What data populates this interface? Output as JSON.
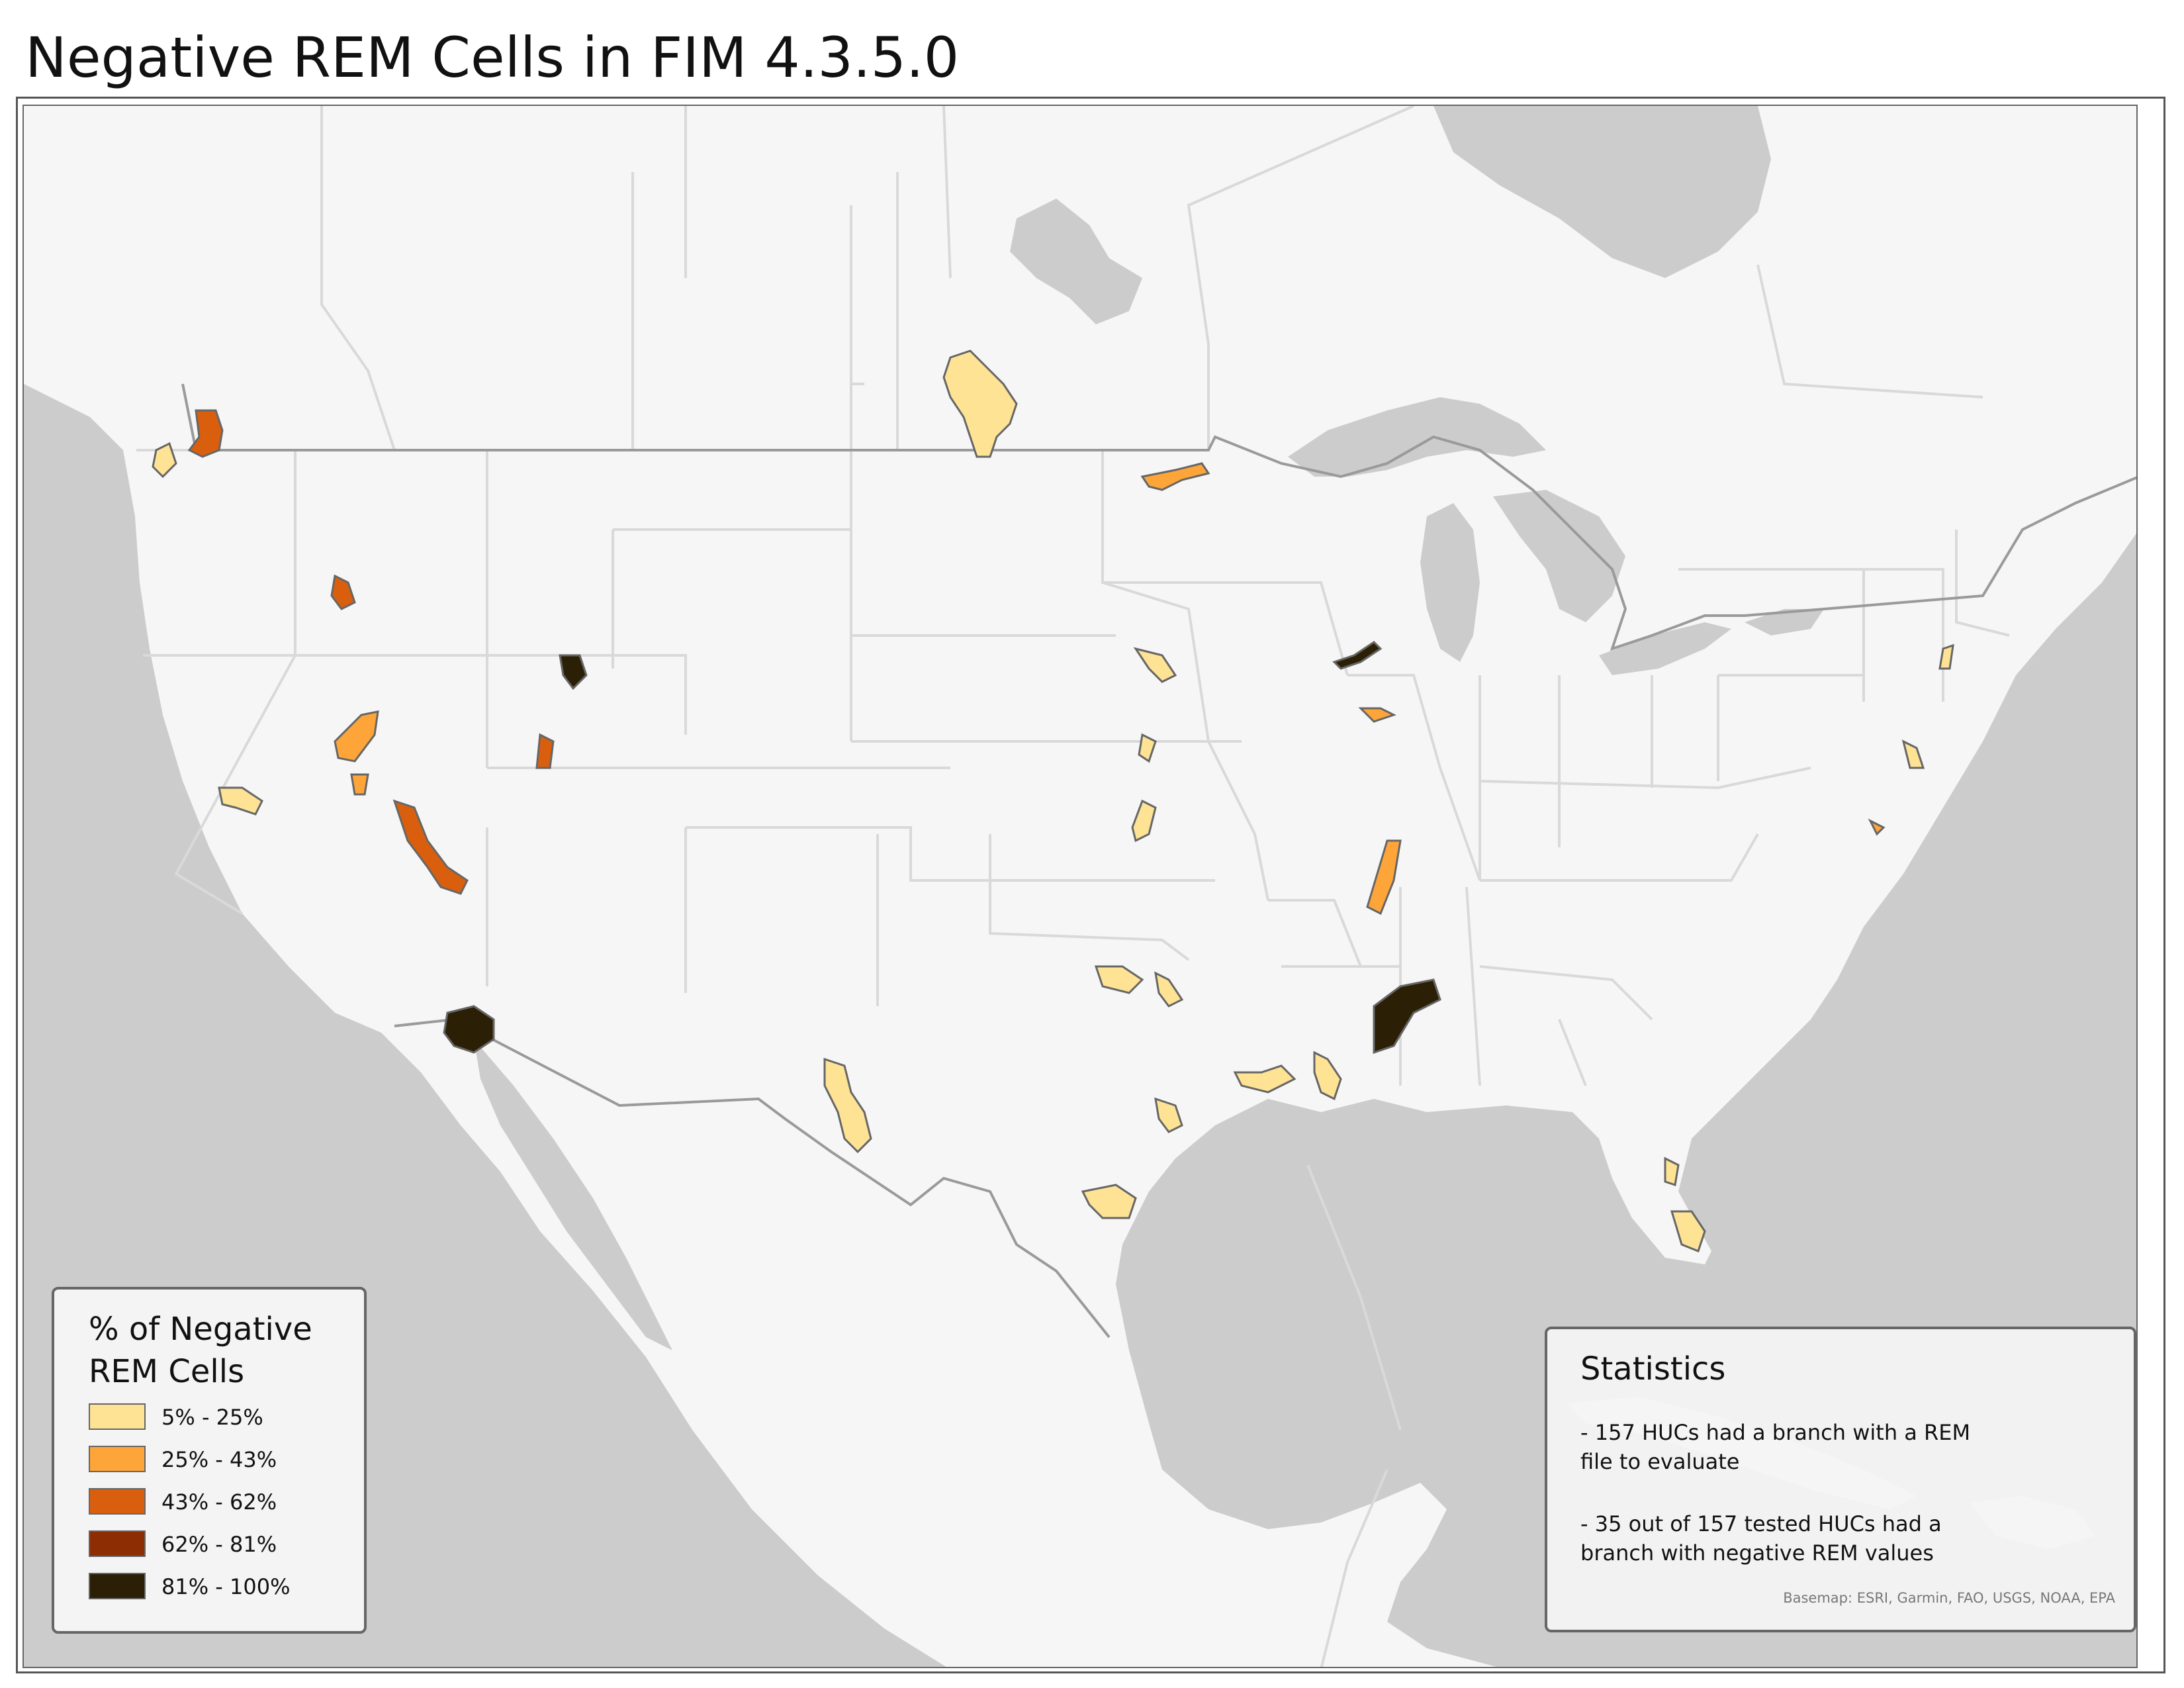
{
  "title": "Negative REM Cells in FIM 4.3.5.0",
  "legend": {
    "title": "% of Negative REM Cells",
    "items": [
      {
        "label": "5% - 25%",
        "color": "#fee395"
      },
      {
        "label": "25% - 43%",
        "color": "#fea53a"
      },
      {
        "label": "43% - 62%",
        "color": "#d95f0e"
      },
      {
        "label": "62% - 81%",
        "color": "#8c2d04"
      },
      {
        "label": "81% - 100%",
        "color": "#2b2005"
      }
    ]
  },
  "statistics": {
    "title": "Statistics",
    "lines": [
      "- 157 HUCs had a branch with a REM\n  file to evaluate",
      "- 35 out of 157 tested HUCs had a\n  branch with negative REM values"
    ],
    "attribution": "Basemap: ESRI, Garmin, FAO, USGS, NOAA, EPA"
  },
  "map_colors": {
    "water": "#cccccc",
    "land": "#f6f6f6",
    "boundary": "#d9d9d9",
    "national_border": "#9a9a9a",
    "huc_outline": "#666666"
  }
}
